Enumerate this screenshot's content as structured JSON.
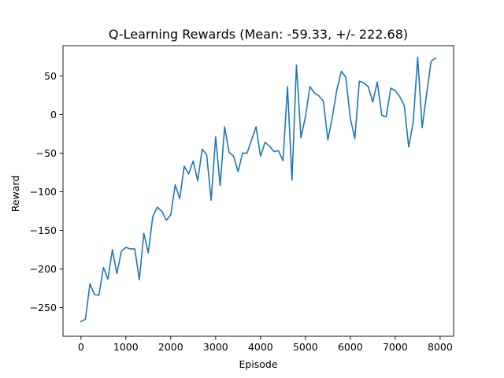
{
  "chart_data": {
    "type": "line",
    "title": "Q-Learning Rewards (Mean: -59.33, +/- 222.68)",
    "xlabel": "Episode",
    "ylabel": "Reward",
    "xlim": [
      -400,
      8300
    ],
    "ylim": [
      -287,
      89
    ],
    "xticks": [
      0,
      1000,
      2000,
      3000,
      4000,
      5000,
      6000,
      7000,
      8000
    ],
    "xtick_labels": [
      "0",
      "1000",
      "2000",
      "3000",
      "4000",
      "5000",
      "6000",
      "7000",
      "8000"
    ],
    "yticks": [
      -250,
      -200,
      -150,
      -100,
      -50,
      0,
      50
    ],
    "ytick_labels": [
      "−250",
      "−200",
      "−150",
      "−100",
      "−50",
      "0",
      "50"
    ],
    "grid": false,
    "line_color": "#1f77b4",
    "series": [
      {
        "x": [
          0,
          100,
          200,
          300,
          400,
          500,
          600,
          700,
          800,
          900,
          1000,
          1100,
          1200,
          1300,
          1400,
          1500,
          1600,
          1700,
          1800,
          1900,
          2000,
          2100,
          2200,
          2300,
          2400,
          2500,
          2600,
          2700,
          2800,
          2900,
          3000,
          3100,
          3200,
          3300,
          3400,
          3500,
          3600,
          3700,
          3800,
          3900,
          4000,
          4100,
          4200,
          4300,
          4400,
          4500,
          4600,
          4700,
          4800,
          4900,
          5000,
          5100,
          5200,
          5300,
          5400,
          5500,
          5600,
          5700,
          5800,
          5900,
          6000,
          6100,
          6200,
          6300,
          6400,
          6500,
          6600,
          6700,
          6800,
          6900,
          7000,
          7100,
          7200,
          7300,
          7400,
          7500,
          7600,
          7700,
          7800,
          7900
        ],
        "values": [
          -268,
          -265,
          -219,
          -233,
          -234,
          -198,
          -213,
          -175,
          -206,
          -177,
          -172,
          -174,
          -174,
          -214,
          -154,
          -179,
          -132,
          -120,
          -125,
          -137,
          -130,
          -91,
          -109,
          -67,
          -77,
          -60,
          -86,
          -45,
          -52,
          -111,
          -29,
          -92,
          -16,
          -49,
          -54,
          -74,
          -50,
          -50,
          -33,
          -16,
          -54,
          -36,
          -41,
          -48,
          -47,
          -60,
          36,
          -85,
          64,
          -30,
          -3,
          36,
          28,
          24,
          17,
          -33,
          -3,
          32,
          56,
          48,
          -5,
          -31,
          43,
          41,
          36,
          16,
          42,
          -1,
          -3,
          34,
          31,
          23,
          12,
          -42,
          -10,
          74,
          -17,
          27,
          69,
          73
        ]
      }
    ]
  }
}
